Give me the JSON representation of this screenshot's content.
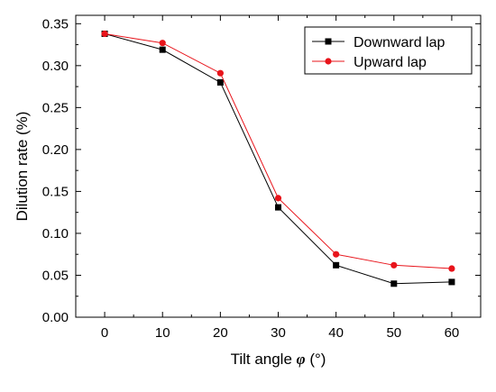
{
  "chart_data": {
    "type": "line",
    "x": [
      0,
      10,
      20,
      30,
      40,
      50,
      60
    ],
    "series": [
      {
        "name": "Downward lap",
        "values": [
          0.338,
          0.319,
          0.28,
          0.131,
          0.062,
          0.04,
          0.042
        ],
        "color": "#000000",
        "marker": "square"
      },
      {
        "name": "Upward lap",
        "values": [
          0.338,
          0.327,
          0.291,
          0.142,
          0.075,
          0.062,
          0.058
        ],
        "color": "#e8141b",
        "marker": "circle"
      }
    ],
    "xlabel": {
      "prefix": "Tilt angle ",
      "symbol": "φ",
      "unit": " (°)"
    },
    "ylabel": "Dilution rate (%)",
    "xlim": [
      -5,
      65
    ],
    "ylim": [
      0,
      0.36
    ],
    "x_ticks": [
      "0",
      "10",
      "20",
      "30",
      "40",
      "50",
      "60"
    ],
    "y_ticks": [
      "0.00",
      "0.05",
      "0.10",
      "0.15",
      "0.20",
      "0.25",
      "0.30",
      "0.35"
    ],
    "grid": false,
    "legend_position": "top-right"
  }
}
